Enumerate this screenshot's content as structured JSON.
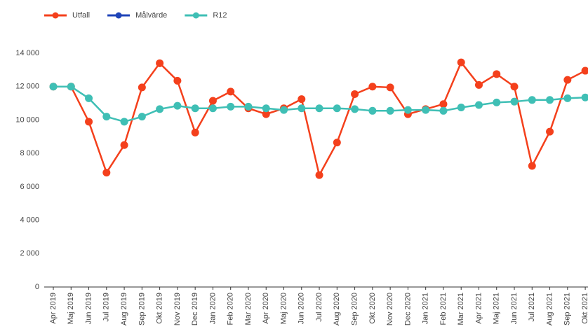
{
  "chart_data": {
    "type": "line",
    "categories": [
      "Apr 2019",
      "Maj 2019",
      "Jun 2019",
      "Jul 2019",
      "Aug 2019",
      "Sep 2019",
      "Okt 2019",
      "Nov 2019",
      "Dec 2019",
      "Jan 2020",
      "Feb 2020",
      "Mar 2020",
      "Apr 2020",
      "Maj 2020",
      "Jun 2020",
      "Jul 2020",
      "Aug 2020",
      "Sep 2020",
      "Okt 2020",
      "Nov 2020",
      "Dec 2020",
      "Jan 2021",
      "Feb 2021",
      "Mar 2021",
      "Apr 2021",
      "Maj 2021",
      "Jun 2021",
      "Jul 2021",
      "Aug 2021",
      "Sep 2021",
      "Okt 2021"
    ],
    "series": [
      {
        "name": "Utfall",
        "color": "#f4401c",
        "values": [
          12000,
          12000,
          9900,
          6850,
          8500,
          11950,
          13400,
          12350,
          9250,
          11150,
          11700,
          10700,
          10350,
          10700,
          11250,
          6700,
          8650,
          11550,
          12000,
          11950,
          10350,
          10650,
          10950,
          13450,
          12100,
          12750,
          12000,
          7250,
          9300,
          12400,
          12950
        ]
      },
      {
        "name": "Målvärde",
        "color": "#1f44b8",
        "values": [
          null,
          null,
          null,
          null,
          null,
          null,
          null,
          null,
          null,
          null,
          null,
          null,
          null,
          null,
          null,
          null,
          null,
          null,
          null,
          null,
          null,
          null,
          null,
          null,
          null,
          null,
          null,
          null,
          null,
          null,
          null
        ]
      },
      {
        "name": "R12",
        "color": "#3fbfb5",
        "values": [
          12000,
          12000,
          11300,
          10200,
          9900,
          10200,
          10650,
          10850,
          10700,
          10700,
          10800,
          10800,
          10700,
          10600,
          10700,
          10700,
          10700,
          10650,
          10550,
          10550,
          10600,
          10600,
          10550,
          10750,
          10900,
          11050,
          11100,
          11200,
          11200,
          11300,
          11350
        ]
      }
    ],
    "ylim": [
      0,
      14000
    ],
    "yticks": [
      0,
      {
        "value": 2000,
        "label": "2 000"
      },
      {
        "value": 4000,
        "label": "4 000"
      },
      {
        "value": 6000,
        "label": "6 000"
      },
      {
        "value": 8000,
        "label": "8 000"
      },
      {
        "value": 10000,
        "label": "10 000"
      },
      {
        "value": 12000,
        "label": "12 000"
      },
      {
        "value": 14000,
        "label": "14 000"
      }
    ],
    "grid": false,
    "legend": "top"
  }
}
